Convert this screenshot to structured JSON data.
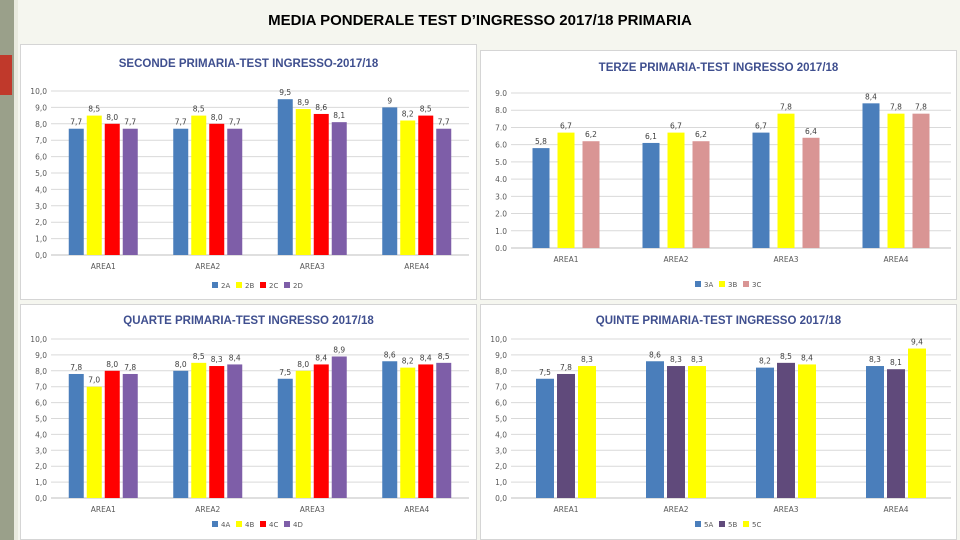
{
  "page": {
    "title": "MEDIA PONDERALE TEST D’INGRESSO 2017/18 PRIMARIA"
  },
  "chart_data": [
    {
      "id": "c1",
      "type": "bar",
      "title": "SECONDE PRIMARIA-TEST INGRESSO-2017/18",
      "categories": [
        "AREA1",
        "AREA2",
        "AREA3",
        "AREA4"
      ],
      "series": [
        {
          "name": "2A",
          "color": "#4a7ebb",
          "values": [
            7.7,
            7.7,
            9.5,
            9.0
          ],
          "labels": [
            "7,7",
            "7,7",
            "9,5",
            "9"
          ]
        },
        {
          "name": "2B",
          "color": "#ffff00",
          "values": [
            8.5,
            8.5,
            8.9,
            8.2
          ],
          "labels": [
            "8,5",
            "8,5",
            "8,9",
            "8,2"
          ]
        },
        {
          "name": "2C",
          "color": "#ff0000",
          "values": [
            8.0,
            8.0,
            8.6,
            8.5
          ],
          "labels": [
            "8,0",
            "8,0",
            "8,6",
            "8,5"
          ]
        },
        {
          "name": "2D",
          "color": "#7e5ea8",
          "values": [
            7.7,
            7.7,
            8.1,
            7.7
          ],
          "labels": [
            "7,7",
            "7,7",
            "8,1",
            "7,7"
          ]
        }
      ],
      "yticks": [
        "0,0",
        "1,0",
        "2,0",
        "3,0",
        "4,0",
        "5,0",
        "6,0",
        "7,0",
        "8,0",
        "9,0",
        "10,0"
      ],
      "ylim": [
        0,
        10
      ],
      "grid": true,
      "legend": "bottom"
    },
    {
      "id": "c2",
      "type": "bar",
      "title": "TERZE PRIMARIA-TEST INGRESSO 2017/18",
      "categories": [
        "AREA1",
        "AREA2",
        "AREA3",
        "AREA4"
      ],
      "series": [
        {
          "name": "3A",
          "color": "#4a7ebb",
          "values": [
            5.8,
            6.1,
            6.7,
            8.4
          ],
          "labels": [
            "5,8",
            "6,1",
            "6,7",
            "8,4"
          ]
        },
        {
          "name": "3B",
          "color": "#ffff00",
          "values": [
            6.7,
            6.7,
            7.8,
            7.8
          ],
          "labels": [
            "6,7",
            "6,7",
            "7,8",
            "7,8"
          ]
        },
        {
          "name": "3C",
          "color": "#d99594",
          "values": [
            6.2,
            6.2,
            6.4,
            7.8
          ],
          "labels": [
            "6,2",
            "6,2",
            "6,4",
            "7,8"
          ]
        }
      ],
      "yticks": [
        "0.0",
        "1.0",
        "2.0",
        "3.0",
        "4.0",
        "5.0",
        "6.0",
        "7.0",
        "8.0",
        "9.0"
      ],
      "ylim": [
        0,
        9
      ],
      "grid": true,
      "legend": "bottom"
    },
    {
      "id": "c3",
      "type": "bar",
      "title": "QUARTE PRIMARIA-TEST INGRESSO 2017/18",
      "categories": [
        "AREA1",
        "AREA2",
        "AREA3",
        "AREA4"
      ],
      "series": [
        {
          "name": "4A",
          "color": "#4a7ebb",
          "values": [
            7.8,
            8.0,
            7.5,
            8.6
          ],
          "labels": [
            "7,8",
            "8,0",
            "7,5",
            "8,6"
          ]
        },
        {
          "name": "4B",
          "color": "#ffff00",
          "values": [
            7.0,
            8.5,
            8.0,
            8.2
          ],
          "labels": [
            "7,0",
            "8,5",
            "8,0",
            "8,2"
          ]
        },
        {
          "name": "4C",
          "color": "#ff0000",
          "values": [
            8.0,
            8.3,
            8.4,
            8.4
          ],
          "labels": [
            "8,0",
            "8,3",
            "8,4",
            "8,4"
          ]
        },
        {
          "name": "4D",
          "color": "#7e5ea8",
          "values": [
            7.8,
            8.4,
            8.9,
            8.5
          ],
          "labels": [
            "7,8",
            "8,4",
            "8,9",
            "8,5"
          ]
        }
      ],
      "yticks": [
        "0,0",
        "1,0",
        "2,0",
        "3,0",
        "4,0",
        "5,0",
        "6,0",
        "7,0",
        "8,0",
        "9,0",
        "10,0"
      ],
      "ylim": [
        0,
        10
      ],
      "grid": true,
      "legend": "bottom"
    },
    {
      "id": "c4",
      "type": "bar",
      "title": "QUINTE PRIMARIA-TEST INGRESSO 2017/18",
      "categories": [
        "AREA1",
        "AREA2",
        "AREA3",
        "AREA4"
      ],
      "series": [
        {
          "name": "5A",
          "color": "#4a7ebb",
          "values": [
            7.5,
            8.6,
            8.2,
            8.3
          ],
          "labels": [
            "7,5",
            "8,6",
            "8,2",
            "8,3"
          ]
        },
        {
          "name": "5B",
          "color": "#604a7b",
          "values": [
            7.8,
            8.3,
            8.5,
            8.1
          ],
          "labels": [
            "7,8",
            "8,3",
            "8,5",
            "8,1"
          ]
        },
        {
          "name": "5C",
          "color": "#ffff00",
          "values": [
            8.3,
            8.3,
            8.4,
            9.4
          ],
          "labels": [
            "8,3",
            "8,3",
            "8,4",
            "9,4"
          ]
        }
      ],
      "yticks": [
        "0,0",
        "1,0",
        "2,0",
        "3,0",
        "4,0",
        "5,0",
        "6,0",
        "7,0",
        "8,0",
        "9,0",
        "10,0"
      ],
      "ylim": [
        0,
        10
      ],
      "grid": true,
      "legend": "bottom"
    }
  ]
}
